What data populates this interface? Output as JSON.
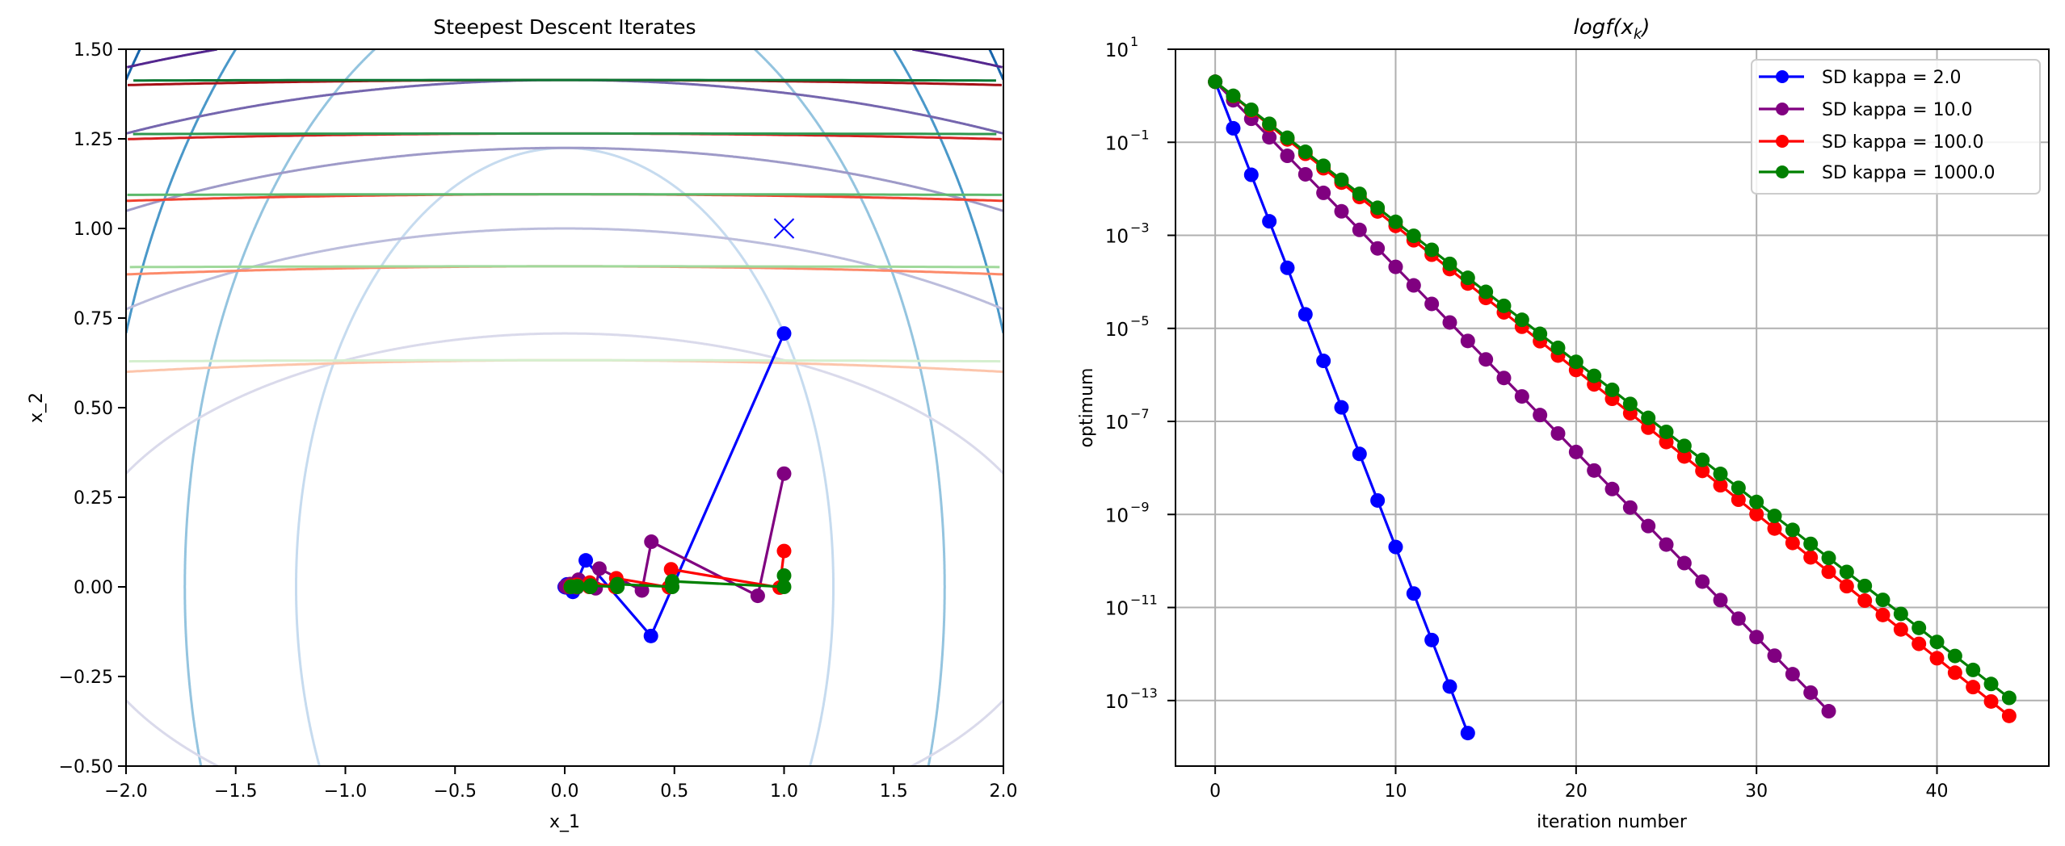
{
  "chart_data": [
    {
      "type": "line",
      "title": "Steepest Descent Iterates",
      "xlabel": "x_1",
      "ylabel": "x_2",
      "xlim": [
        -2,
        2
      ],
      "ylim": [
        -0.5,
        1.5
      ],
      "grid": false,
      "xticks": [
        {
          "value": -2,
          "label": "−2.0"
        },
        {
          "value": -1.5,
          "label": "−1.5"
        },
        {
          "value": -1,
          "label": "−1.0"
        },
        {
          "value": -0.5,
          "label": "−0.5"
        },
        {
          "value": 0,
          "label": "0.0"
        },
        {
          "value": 0.5,
          "label": "0.5"
        },
        {
          "value": 1,
          "label": "1.0"
        },
        {
          "value": 1.5,
          "label": "1.5"
        },
        {
          "value": 2,
          "label": "2.0"
        }
      ],
      "yticks": [
        {
          "value": -0.5,
          "label": "−0.50"
        },
        {
          "value": -0.25,
          "label": "−0.25"
        },
        {
          "value": 0,
          "label": "0.00"
        },
        {
          "value": 0.25,
          "label": "0.25"
        },
        {
          "value": 0.5,
          "label": "0.50"
        },
        {
          "value": 0.75,
          "label": "0.75"
        },
        {
          "value": 1,
          "label": "1.00"
        },
        {
          "value": 1.25,
          "label": "1.25"
        },
        {
          "value": 1.5,
          "label": "1.50"
        }
      ],
      "contours": [
        {
          "family": "blues",
          "ratio": 1,
          "levels": [
            1.5,
            3,
            4.5,
            6
          ],
          "colors": [
            "#c6dbef",
            "#94c4df",
            "#4a98c9",
            "#1764ab"
          ]
        },
        {
          "family": "purples",
          "ratio": 10,
          "levels": [
            5,
            10,
            15,
            20,
            25
          ],
          "colors": [
            "#dadaeb",
            "#bcbddc",
            "#9e9ac8",
            "#7566ae",
            "#54278f"
          ]
        },
        {
          "family": "reds",
          "ratio": 100,
          "levels": [
            40,
            80,
            120,
            160,
            200
          ],
          "colors": [
            "#fcc5ab",
            "#fc8a6a",
            "#f14432",
            "#d42020",
            "#a50f15"
          ]
        },
        {
          "family": "greens",
          "ratio": 1000,
          "levels": [
            400,
            800,
            1200,
            1600,
            2000
          ],
          "colors": [
            "#d5efcf",
            "#a0d99b",
            "#5db96b",
            "#2f974e",
            "#0b7734"
          ]
        }
      ],
      "series": [
        {
          "name": "SD kappa = 2.0",
          "color": "#0000ff",
          "points": [
            [
              1,
              0.707
            ],
            [
              0.393,
              -0.137
            ],
            [
              0.096,
              0.074
            ],
            [
              0.037,
              -0.014
            ],
            [
              0.01,
              0.007
            ],
            [
              0.004,
              -0.0014
            ],
            [
              0.001,
              0.0007
            ],
            [
              0.0004,
              -0.00014
            ],
            [
              0.0001,
              7e-05
            ]
          ]
        },
        {
          "name": "SD kappa = 10.0",
          "color": "#800080",
          "points": [
            [
              1,
              0.316
            ],
            [
              0.88,
              -0.025
            ],
            [
              0.395,
              0.126
            ],
            [
              0.352,
              -0.01
            ],
            [
              0.158,
              0.051
            ],
            [
              0.141,
              -0.004
            ],
            [
              0.063,
              0.02
            ],
            [
              0.056,
              -0.0016
            ],
            [
              0.025,
              0.008
            ],
            [
              0.023,
              -0.0006
            ],
            [
              0.01,
              0.0032
            ],
            [
              0.009,
              -0.0003
            ],
            [
              0.004,
              0.0013
            ]
          ]
        },
        {
          "name": "SD kappa = 100.0",
          "color": "#ff0000",
          "points": [
            [
              1,
              0.1
            ],
            [
              0.98,
              -0.002
            ],
            [
              0.485,
              0.049
            ],
            [
              0.475,
              -0.001
            ],
            [
              0.235,
              0.024
            ],
            [
              0.23,
              0
            ],
            [
              0.114,
              0.012
            ],
            [
              0.112,
              0
            ],
            [
              0.055,
              0.0057
            ],
            [
              0.054,
              0
            ],
            [
              0.027,
              0.0028
            ],
            [
              0.026,
              0
            ]
          ]
        },
        {
          "name": "SD kappa = 1000.0",
          "color": "#008000",
          "points": [
            [
              1,
              0.0316
            ],
            [
              1,
              0
            ],
            [
              0.49,
              0.0155
            ],
            [
              0.49,
              0
            ],
            [
              0.24,
              0.0076
            ],
            [
              0.24,
              0
            ],
            [
              0.118,
              0.0037
            ],
            [
              0.117,
              0
            ],
            [
              0.058,
              0.0018
            ],
            [
              0.057,
              0
            ],
            [
              0.028,
              0.0009
            ],
            [
              0.028,
              0
            ]
          ]
        }
      ],
      "optimum_marker": {
        "x": 1,
        "y": 1,
        "symbol": "x",
        "color": "#0000ff"
      }
    },
    {
      "type": "line",
      "title": {
        "prefix": "logf(x",
        "sub": "k",
        "suffix": ")"
      },
      "xlabel": "iteration number",
      "ylabel": "optimum",
      "yscale": "log",
      "xlim": [
        -2.2,
        46.2
      ],
      "ylim": [
        3.9e-15,
        10
      ],
      "grid": true,
      "legend_position": "top-right",
      "xticks": [
        {
          "value": 0,
          "label": "0"
        },
        {
          "value": 10,
          "label": "10"
        },
        {
          "value": 20,
          "label": "20"
        },
        {
          "value": 30,
          "label": "30"
        },
        {
          "value": 40,
          "label": "40"
        }
      ],
      "yticks": [
        {
          "exp": 1,
          "base": "10",
          "label": "1"
        },
        {
          "exp": -1,
          "base": "10",
          "label": "−1"
        },
        {
          "exp": -3,
          "base": "10",
          "label": "−3"
        },
        {
          "exp": -5,
          "base": "10",
          "label": "−5"
        },
        {
          "exp": -7,
          "base": "10",
          "label": "−7"
        },
        {
          "exp": -9,
          "base": "10",
          "label": "−9"
        },
        {
          "exp": -11,
          "base": "10",
          "label": "−11"
        },
        {
          "exp": -13,
          "base": "10",
          "label": "−13"
        }
      ],
      "series": [
        {
          "name": "SD kappa = 2.0",
          "color": "#0000ff",
          "values": [
            2,
            0.2,
            0.02,
            0.002,
            0.0002,
            2e-05,
            2e-06,
            2e-07,
            2e-08,
            2e-09,
            2e-10,
            2e-11,
            2e-12,
            2e-13,
            2e-14
          ]
        },
        {
          "name": "SD kappa = 10.0",
          "color": "#800080",
          "values": [
            2,
            0.8,
            0.32,
            0.128,
            0.0512,
            0.02048,
            0.00819,
            0.00328,
            0.00131,
            0.000524,
            0.00021,
            8.39e-05,
            3.36e-05,
            1.34e-05,
            5.37e-06,
            2.15e-06,
            8.59e-07,
            3.44e-07,
            1.37e-07,
            5.5e-08,
            2.2e-08,
            8.8e-09,
            3.52e-09,
            1.41e-09,
            5.63e-10,
            2.25e-10,
            9.01e-11,
            3.6e-11,
            1.44e-11,
            5.76e-12,
            2.31e-12,
            9.22e-13,
            3.69e-13,
            1.48e-13,
            5.9e-14
          ]
        },
        {
          "name": "SD kappa = 100.0",
          "color": "#ff0000",
          "values": [
            2,
            0.98,
            0.4802,
            0.2353,
            0.1153,
            0.0565,
            0.02768,
            0.01357,
            0.006648,
            0.003257,
            0.001596,
            0.0007822,
            0.0003833,
            0.0001878,
            9.202e-05,
            4.509e-05,
            2.209e-05,
            1.083e-05,
            5.305e-06,
            2.599e-06,
            1.274e-06,
            6.242e-07,
            3.059e-07,
            1.499e-07,
            7.343e-08,
            3.598e-08,
            1.763e-08,
            8.639e-09,
            4.233e-09,
            2.074e-09,
            1.016e-09,
            4.98e-10,
            2.44e-10,
            1.196e-10,
            5.86e-11,
            2.871e-11,
            1.407e-11,
            6.894e-12,
            3.378e-12,
            1.655e-12,
            8.111e-13,
            3.974e-13,
            1.947e-13,
            9.542e-14,
            4.676e-14
          ]
        },
        {
          "name": "SD kappa = 1000.0",
          "color": "#008000",
          "values": [
            2,
            1,
            0.5,
            0.25,
            0.125,
            0.0625,
            0.03125,
            0.015625,
            0.00781,
            0.00391,
            0.00195,
            0.000977,
            0.000488,
            0.000244,
            0.000122,
            6.1e-05,
            3.05e-05,
            1.53e-05,
            7.63e-06,
            3.81e-06,
            1.91e-06,
            9.54e-07,
            4.77e-07,
            2.38e-07,
            1.19e-07,
            5.96e-08,
            2.98e-08,
            1.49e-08,
            7.45e-09,
            3.73e-09,
            1.86e-09,
            9.31e-10,
            4.66e-10,
            2.33e-10,
            1.16e-10,
            5.82e-11,
            2.91e-11,
            1.46e-11,
            7.28e-12,
            3.64e-12,
            1.82e-12,
            9.09e-13,
            4.55e-13,
            2.27e-13,
            1.14e-13
          ]
        }
      ]
    }
  ]
}
